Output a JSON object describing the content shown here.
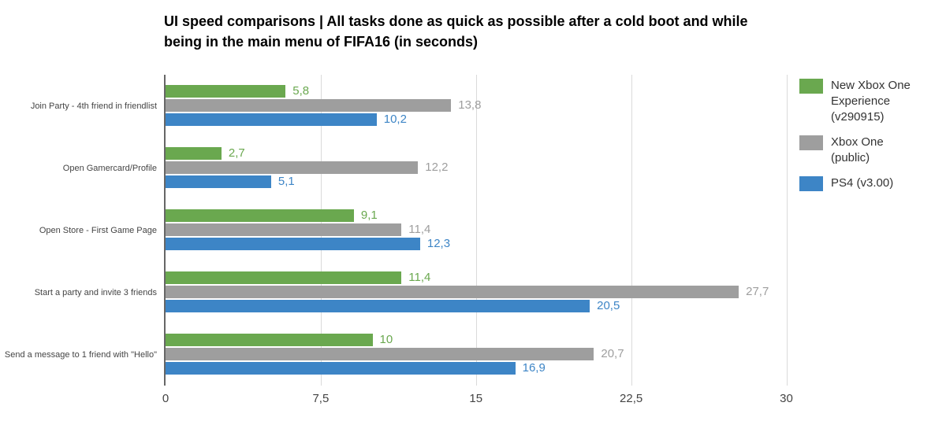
{
  "chart_data": {
    "type": "bar",
    "orientation": "horizontal",
    "title": "UI speed comparisons | All tasks done as quick as possible after a cold boot and while being in the main menu of FIFA16 (in seconds)",
    "categories": [
      "Join Party - 4th friend in friendlist",
      "Open Gamercard/Profile",
      "Open Store - First Game Page",
      "Start a party and invite 3 friends",
      "Send a message to 1 friend with \"Hello\""
    ],
    "series": [
      {
        "name": "New Xbox One Experience (v290915)",
        "color": "#6aa84f",
        "values": [
          5.8,
          2.7,
          9.1,
          11.4,
          10
        ],
        "labels": [
          "5,8",
          "2,7",
          "9,1",
          "11,4",
          "10"
        ]
      },
      {
        "name": "Xbox One (public)",
        "color": "#9e9e9e",
        "values": [
          13.8,
          12.2,
          11.4,
          27.7,
          20.7
        ],
        "labels": [
          "13,8",
          "12,2",
          "11,4",
          "27,7",
          "20,7"
        ]
      },
      {
        "name": "PS4 (v3.00)",
        "color": "#3d85c6",
        "values": [
          10.2,
          5.1,
          12.3,
          20.5,
          16.9
        ],
        "labels": [
          "10,2",
          "5,1",
          "12,3",
          "20,5",
          "16,9"
        ]
      }
    ],
    "xlim": [
      0,
      30.4
    ],
    "ticks": [
      0,
      7.5,
      15,
      22.5,
      30
    ],
    "tick_labels": [
      "0",
      "7,5",
      "15",
      "22,5",
      "30"
    ],
    "grid": true,
    "legend_position": "right",
    "unit": "seconds"
  },
  "colors": {
    "gridline": "#dadada",
    "axis_line": "#666666",
    "tick_text": "#444444",
    "category_text": "#444444",
    "legend_text": "#333333",
    "background": "#ffffff"
  }
}
